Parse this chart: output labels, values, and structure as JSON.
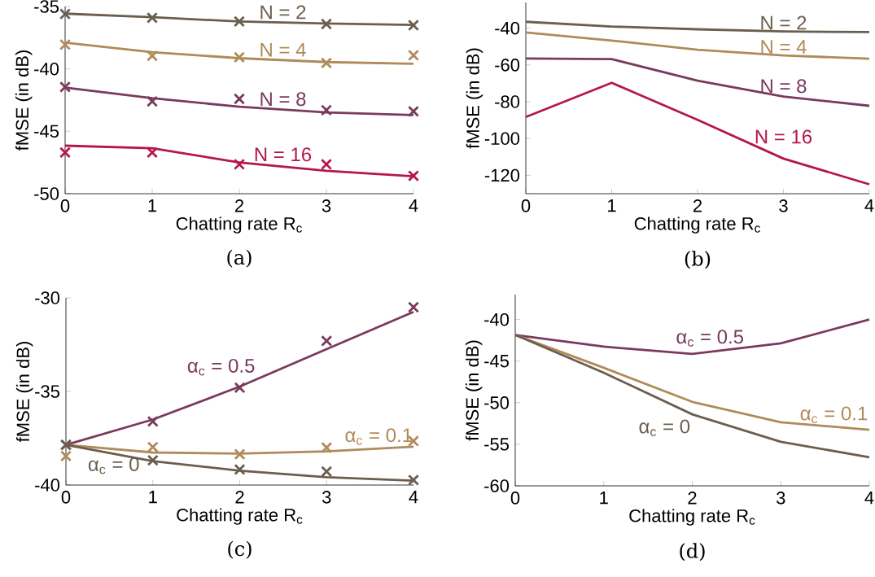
{
  "chart_data": [
    {
      "type": "line",
      "title": "(a)",
      "xlabel": "Chatting rate R$_{c}$",
      "ylabel": "fMSE (in dB)",
      "x": [
        0,
        1,
        2,
        3,
        4
      ],
      "xlim": [
        0,
        4
      ],
      "xticks": [
        0,
        1,
        2,
        3,
        4
      ],
      "ylim": [
        -50,
        -35
      ],
      "yticks": [
        -50,
        -45,
        -40,
        -35
      ],
      "series": [
        {
          "name": "N = 2",
          "color": "#6b5e4e",
          "values": [
            -35.57,
            -35.86,
            -36.2,
            -36.36,
            -36.47
          ]
        },
        {
          "type": "scatter",
          "marker": "cross",
          "color": "#6b5e4e",
          "values": [
            -35.6,
            -35.9,
            -36.2,
            -36.4,
            -36.5
          ]
        },
        {
          "name": "N = 4",
          "color": "#b08a5a",
          "values": [
            -37.9,
            -38.66,
            -39.14,
            -39.45,
            -39.59
          ]
        },
        {
          "type": "scatter",
          "marker": "cross",
          "color": "#b08a5a",
          "values": [
            -38.05,
            -38.95,
            -39.07,
            -39.52,
            -38.91
          ]
        },
        {
          "name": "N = 8",
          "color": "#7a3a5e",
          "values": [
            -41.5,
            -42.35,
            -43.03,
            -43.48,
            -43.7
          ]
        },
        {
          "type": "scatter",
          "marker": "cross",
          "color": "#7a3a5e",
          "values": [
            -41.45,
            -42.6,
            -42.4,
            -43.3,
            -43.4
          ]
        },
        {
          "name": "N = 16",
          "color": "#b5164f",
          "values": [
            -46.15,
            -46.36,
            -47.49,
            -48.17,
            -48.6
          ]
        },
        {
          "type": "scatter",
          "marker": "cross",
          "color": "#b5164f",
          "values": [
            -46.7,
            -46.7,
            -47.65,
            -47.65,
            -48.57
          ]
        }
      ]
    },
    {
      "type": "line",
      "title": "(b)",
      "xlabel": "Chatting rate R$_{c}$",
      "ylabel": "fMSE (in dB)",
      "x": [
        0,
        1,
        2,
        3,
        4
      ],
      "xlim": [
        0,
        4
      ],
      "xticks": [
        0,
        1,
        2,
        3,
        4
      ],
      "ylim": [
        -130,
        -26
      ],
      "yticks": [
        -120,
        -100,
        -80,
        -60,
        -40
      ],
      "series": [
        {
          "name": "N = 2",
          "color": "#6b5e4e",
          "values": [
            -36.5,
            -39.1,
            -40.6,
            -41.8,
            -42.1
          ]
        },
        {
          "name": "N = 4",
          "color": "#b08a5a",
          "values": [
            -42.3,
            -46.7,
            -51.7,
            -54.8,
            -56.6
          ]
        },
        {
          "name": "N = 8",
          "color": "#7a3a5e",
          "values": [
            -56.5,
            -56.8,
            -68.5,
            -77.2,
            -82.2
          ]
        },
        {
          "name": "N = 16",
          "color": "#b5164f",
          "values": [
            -88.3,
            -69.7,
            -89.8,
            -110.9,
            -124.9
          ]
        }
      ]
    },
    {
      "type": "line",
      "title": "(c)",
      "xlabel": "Chatting rate R$_{c}$",
      "ylabel": "fMSE (in dB)",
      "x": [
        0,
        1,
        2,
        3,
        4
      ],
      "xlim": [
        0,
        4
      ],
      "xticks": [
        0,
        1,
        2,
        3,
        4
      ],
      "ylim": [
        -40,
        -30
      ],
      "yticks": [
        -40,
        -35,
        -30
      ],
      "series": [
        {
          "name": "α$_{c}$ = 0.5",
          "color": "#7a3a5e",
          "values": [
            -37.85,
            -36.5,
            -34.74,
            -32.74,
            -30.75
          ]
        },
        {
          "type": "scatter",
          "marker": "cross",
          "color": "#7a3a5e",
          "values": [
            -37.85,
            -36.6,
            -34.8,
            -32.3,
            -30.5
          ]
        },
        {
          "name": "α$_{c}$ = 0.1",
          "color": "#b08a5a",
          "values": [
            -37.85,
            -38.26,
            -38.32,
            -38.2,
            -37.95
          ]
        },
        {
          "type": "scatter",
          "marker": "cross",
          "color": "#b08a5a",
          "values": [
            -38.45,
            -37.97,
            -38.35,
            -38.0,
            -37.65
          ]
        },
        {
          "name": "α$_{c}$ = 0",
          "color": "#6b5e4e",
          "values": [
            -37.85,
            -38.72,
            -39.23,
            -39.58,
            -39.77
          ]
        },
        {
          "type": "scatter",
          "marker": "cross",
          "color": "#6b5e4e",
          "values": [
            -37.85,
            -38.68,
            -39.17,
            -39.28,
            -39.73
          ]
        }
      ]
    },
    {
      "type": "line",
      "title": "(d)",
      "xlabel": "Chatting rate R$_{c}$",
      "ylabel": "fMSE (in dB)",
      "x": [
        0,
        1,
        2,
        3,
        4
      ],
      "xlim": [
        0,
        4
      ],
      "xticks": [
        0,
        1,
        2,
        3,
        4
      ],
      "ylim": [
        -60,
        -37
      ],
      "yticks": [
        -60,
        -55,
        -50,
        -45,
        -40
      ],
      "series": [
        {
          "name": "α$_{c}$ = 0.5",
          "color": "#7a3a5e",
          "values": [
            -41.85,
            -43.26,
            -44.13,
            -42.86,
            -40.0
          ]
        },
        {
          "name": "α$_{c}$ = 0.1",
          "color": "#b08a5a",
          "values": [
            -41.85,
            -45.8,
            -49.9,
            -52.35,
            -53.26
          ]
        },
        {
          "name": "α$_{c}$ = 0",
          "color": "#6b5e4e",
          "values": [
            -41.85,
            -46.4,
            -51.4,
            -54.7,
            -56.55
          ]
        }
      ]
    }
  ]
}
